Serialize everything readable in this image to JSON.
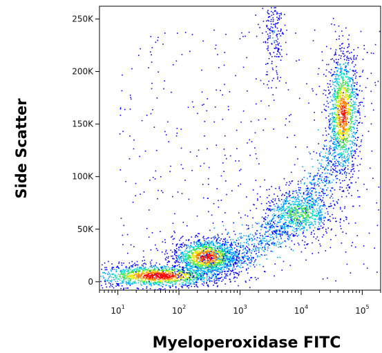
{
  "chart_data": {
    "type": "scatter",
    "subtype": "flow-cytometry density dot plot",
    "xlabel": "Myeloperoxidase FITC",
    "ylabel": "Side Scatter",
    "x_scale": "log",
    "xlim": [
      5,
      200000
    ],
    "ylim": [
      -8000,
      262144
    ],
    "x_ticks": [
      {
        "value": 10,
        "base": "10",
        "exp": "1"
      },
      {
        "value": 100,
        "base": "10",
        "exp": "2"
      },
      {
        "value": 1000,
        "base": "10",
        "exp": "3"
      },
      {
        "value": 10000,
        "base": "10",
        "exp": "4"
      },
      {
        "value": 100000,
        "base": "10",
        "exp": "5"
      }
    ],
    "y_ticks": [
      {
        "value": 0,
        "label": "0"
      },
      {
        "value": 50000,
        "label": "50K"
      },
      {
        "value": 100000,
        "label": "100K"
      },
      {
        "value": 150000,
        "label": "150K"
      },
      {
        "value": 200000,
        "label": "200K"
      },
      {
        "value": 250000,
        "label": "250K"
      }
    ],
    "grid": false,
    "color_scale": [
      "#0000ff",
      "#00aaff",
      "#00e0c0",
      "#40e040",
      "#e8e800",
      "#ff8000",
      "#ff0000"
    ],
    "populations": [
      {
        "x_center": 45,
        "y_center": 6000,
        "x_spread_decades": 0.55,
        "y_spread": 5500,
        "density": 1.0
      },
      {
        "x_center": 280,
        "y_center": 24000,
        "x_spread_decades": 0.28,
        "y_spread": 9000,
        "density": 0.95
      },
      {
        "x_center": 9000,
        "y_center": 65000,
        "x_spread_decades": 0.3,
        "y_spread": 12000,
        "density": 0.55
      },
      {
        "x_center": 48000,
        "y_center": 160000,
        "x_spread_decades": 0.13,
        "y_spread": 30000,
        "density": 0.9
      },
      {
        "x_center": 3500,
        "y_center": 235000,
        "x_spread_decades": 0.1,
        "y_spread": 25000,
        "density": 0.15
      }
    ]
  }
}
